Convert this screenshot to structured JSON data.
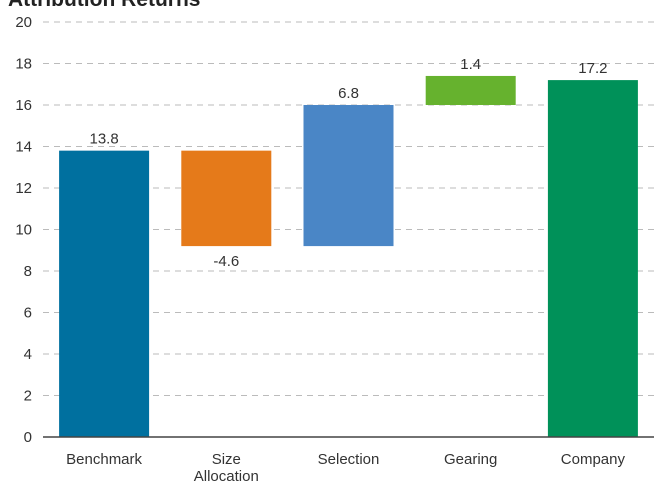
{
  "chart_data": {
    "type": "waterfall",
    "title": "Attribution Returns",
    "categories": [
      "Benchmark",
      "Size Allocation",
      "Selection",
      "Gearing",
      "Company"
    ],
    "values": [
      13.8,
      -4.6,
      6.8,
      1.4,
      17.2
    ],
    "colors": [
      "#00709f",
      "#e57a1a",
      "#4a86c6",
      "#66b22e",
      "#009159"
    ],
    "ylim": [
      0,
      20
    ],
    "yticks": [
      0,
      2,
      4,
      6,
      8,
      10,
      12,
      14,
      16,
      18,
      20
    ],
    "grid": true
  }
}
